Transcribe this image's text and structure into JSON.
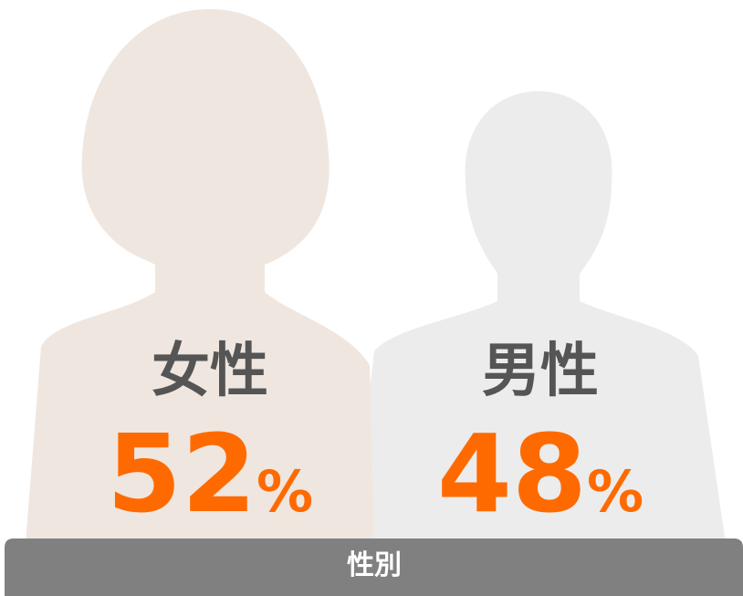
{
  "title": "性別",
  "groups": [
    {
      "label": "女性",
      "value": 52,
      "unit": "%"
    },
    {
      "label": "男性",
      "value": 48,
      "unit": "%"
    }
  ]
}
